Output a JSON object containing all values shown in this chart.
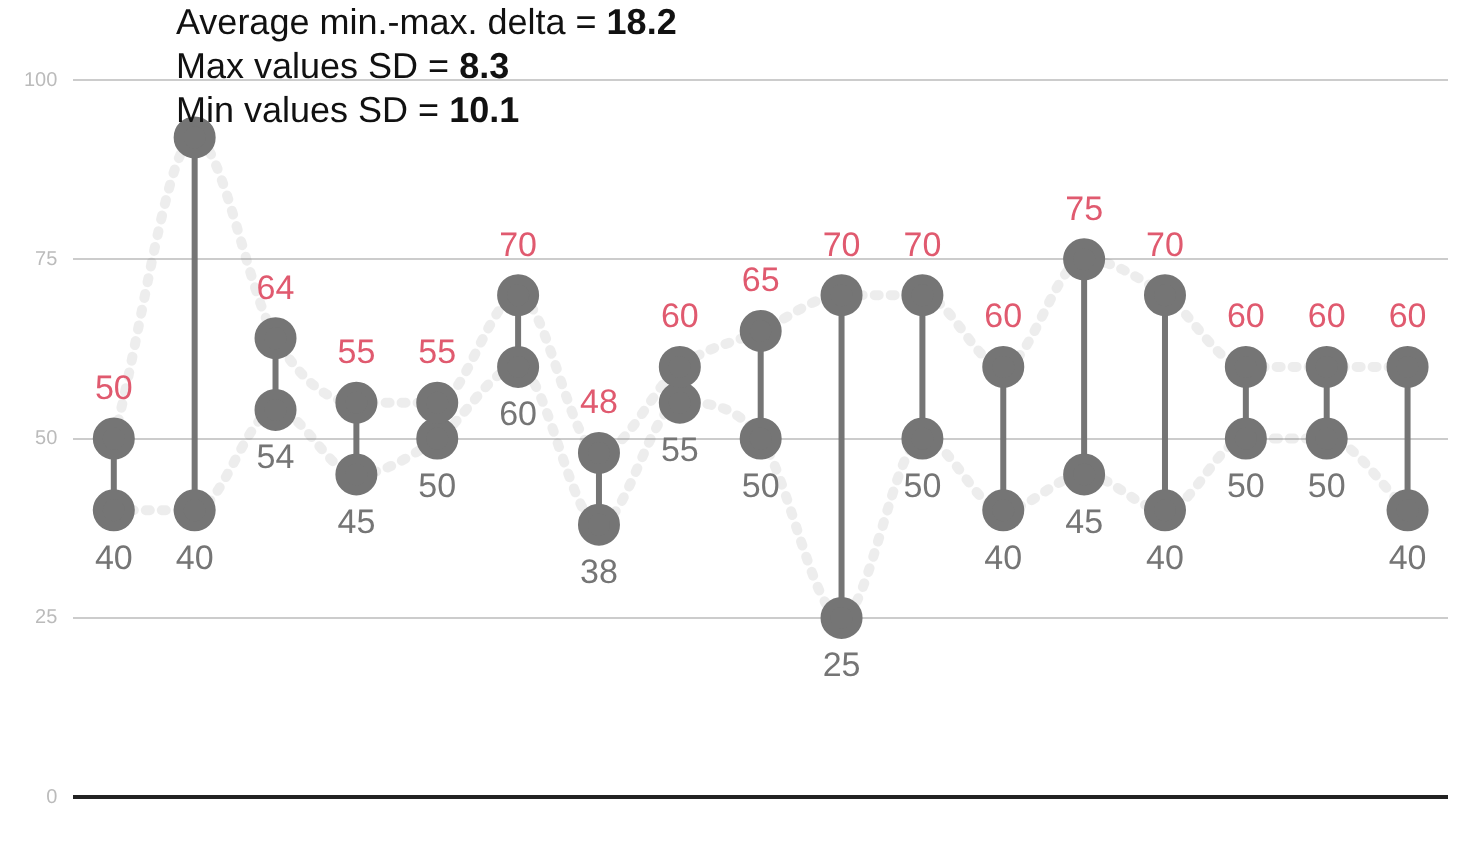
{
  "chart_data": {
    "type": "line",
    "categories": [
      null,
      null,
      null,
      null,
      null,
      null,
      null,
      null,
      null,
      null,
      null,
      null,
      null,
      null,
      null,
      null,
      null
    ],
    "annotations": [
      "Average min.-max. delta = 18.2",
      "Max values SD = 8.3",
      "Min values SD = 10.1"
    ],
    "series": [
      {
        "color": "#757575",
        "values": [
          50,
          92,
          64,
          55,
          55,
          70,
          48,
          60,
          65,
          70,
          70,
          60,
          75,
          70,
          60,
          60,
          60
        ],
        "value_labels": [
          "50",
          null,
          "64",
          "55",
          "55",
          "70",
          "48",
          "60",
          "65",
          "70",
          "70",
          "60",
          "75",
          "70",
          "60",
          "60",
          "60"
        ]
      },
      {
        "color": "#757575",
        "values": [
          40,
          40,
          54,
          45,
          50,
          60,
          38,
          55,
          50,
          25,
          50,
          40,
          45,
          40,
          50,
          50,
          40
        ],
        "value_labels": [
          "40",
          "40",
          "54",
          "45",
          "50",
          "60",
          "38",
          "55",
          "50",
          "25",
          "50",
          "40",
          "45",
          "40",
          "50",
          "50",
          "40"
        ]
      }
    ],
    "ylim": [
      0,
      100
    ],
    "yticks": [
      0,
      25,
      50,
      75,
      100
    ],
    "grid": "y",
    "legend": false,
    "marker": "circle",
    "line_style": "dotted"
  }
}
